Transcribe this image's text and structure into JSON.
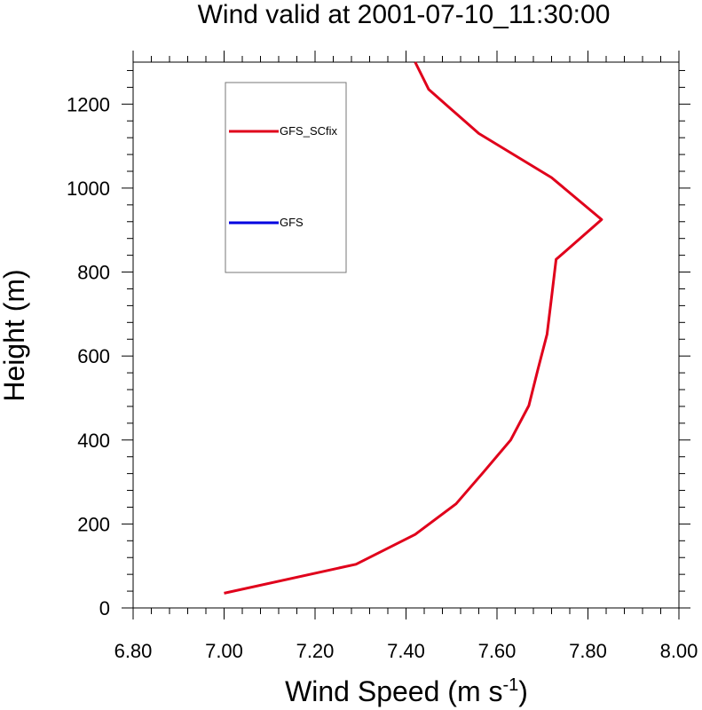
{
  "chart_data": {
    "type": "line",
    "title": "Wind valid at 2001-07-10_11:30:00",
    "xlabel": "Wind Speed (m s",
    "xlabel_superscript": "-1",
    "xlabel_suffix": ")",
    "ylabel": "Height (m)",
    "xlim": [
      6.8,
      8.0
    ],
    "ylim": [
      0,
      1300
    ],
    "x_ticks": [
      "6.80",
      "7.00",
      "7.20",
      "7.40",
      "7.60",
      "7.80",
      "8.00"
    ],
    "y_ticks": [
      "0",
      "200",
      "400",
      "600",
      "800",
      "1000",
      "1200"
    ],
    "grid": false,
    "legend_placement": "top-left",
    "series": [
      {
        "name": "GFS_SCfix",
        "color": "#e0001b",
        "points": [
          {
            "x": 7.0,
            "y": 35
          },
          {
            "x": 7.29,
            "y": 104
          },
          {
            "x": 7.42,
            "y": 175
          },
          {
            "x": 7.51,
            "y": 248
          },
          {
            "x": 7.57,
            "y": 323
          },
          {
            "x": 7.63,
            "y": 400
          },
          {
            "x": 7.67,
            "y": 482
          },
          {
            "x": 7.69,
            "y": 568
          },
          {
            "x": 7.71,
            "y": 652
          },
          {
            "x": 7.72,
            "y": 740
          },
          {
            "x": 7.73,
            "y": 830
          },
          {
            "x": 7.83,
            "y": 925
          },
          {
            "x": 7.72,
            "y": 1025
          },
          {
            "x": 7.56,
            "y": 1130
          },
          {
            "x": 7.45,
            "y": 1235
          },
          {
            "x": 7.42,
            "y": 1300
          }
        ]
      },
      {
        "name": "GFS",
        "color": "#0000e0",
        "points": []
      }
    ]
  }
}
